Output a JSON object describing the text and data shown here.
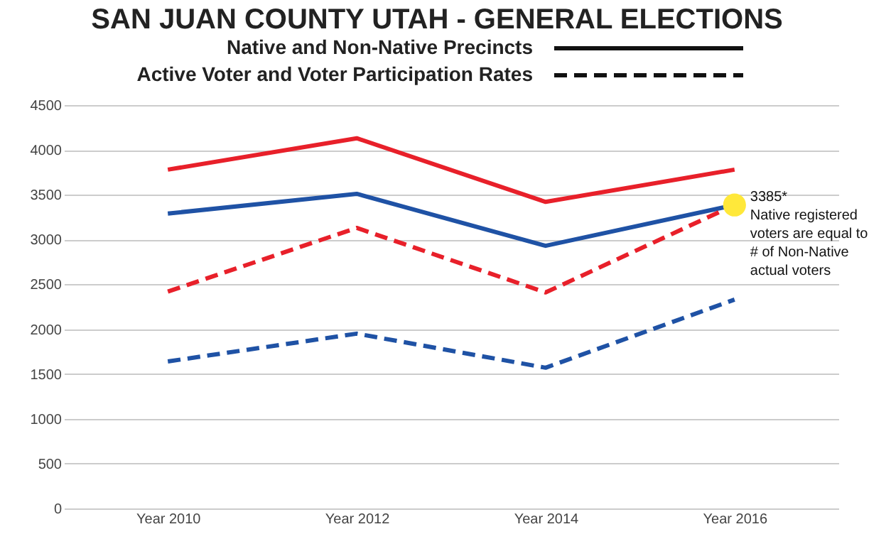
{
  "chart_data": {
    "type": "line",
    "title": "SAN JUAN COUNTY UTAH - GENERAL ELECTIONS",
    "categories": [
      "Year 2010",
      "Year 2012",
      "Year 2014",
      "Year 2016"
    ],
    "series": [
      {
        "color": "#e8202a",
        "line_style": "solid",
        "values": [
          3780,
          4130,
          3420,
          3780
        ]
      },
      {
        "color": "#1f52a5",
        "line_style": "solid",
        "values": [
          3290,
          3510,
          2930,
          3385
        ]
      },
      {
        "color": "#e8202a",
        "line_style": "dashed",
        "values": [
          2420,
          3130,
          2410,
          3385
        ]
      },
      {
        "color": "#1f52a5",
        "line_style": "dashed",
        "values": [
          1640,
          1950,
          1570,
          2330
        ]
      }
    ],
    "annotations": [
      "Native and Non-Native Precincts",
      "Active Voter and Voter Participation Rates",
      {
        "text": "3385*\nNative registered\nvoters are equal to\n# of Non-Native\nactual voters",
        "x": "Year 2016",
        "y": 3385
      }
    ],
    "ylim": [
      0,
      4500
    ],
    "yticks": [
      0,
      500,
      1000,
      1500,
      2000,
      2500,
      3000,
      3500,
      4000,
      4500
    ],
    "grid": "y",
    "marker": "none"
  }
}
